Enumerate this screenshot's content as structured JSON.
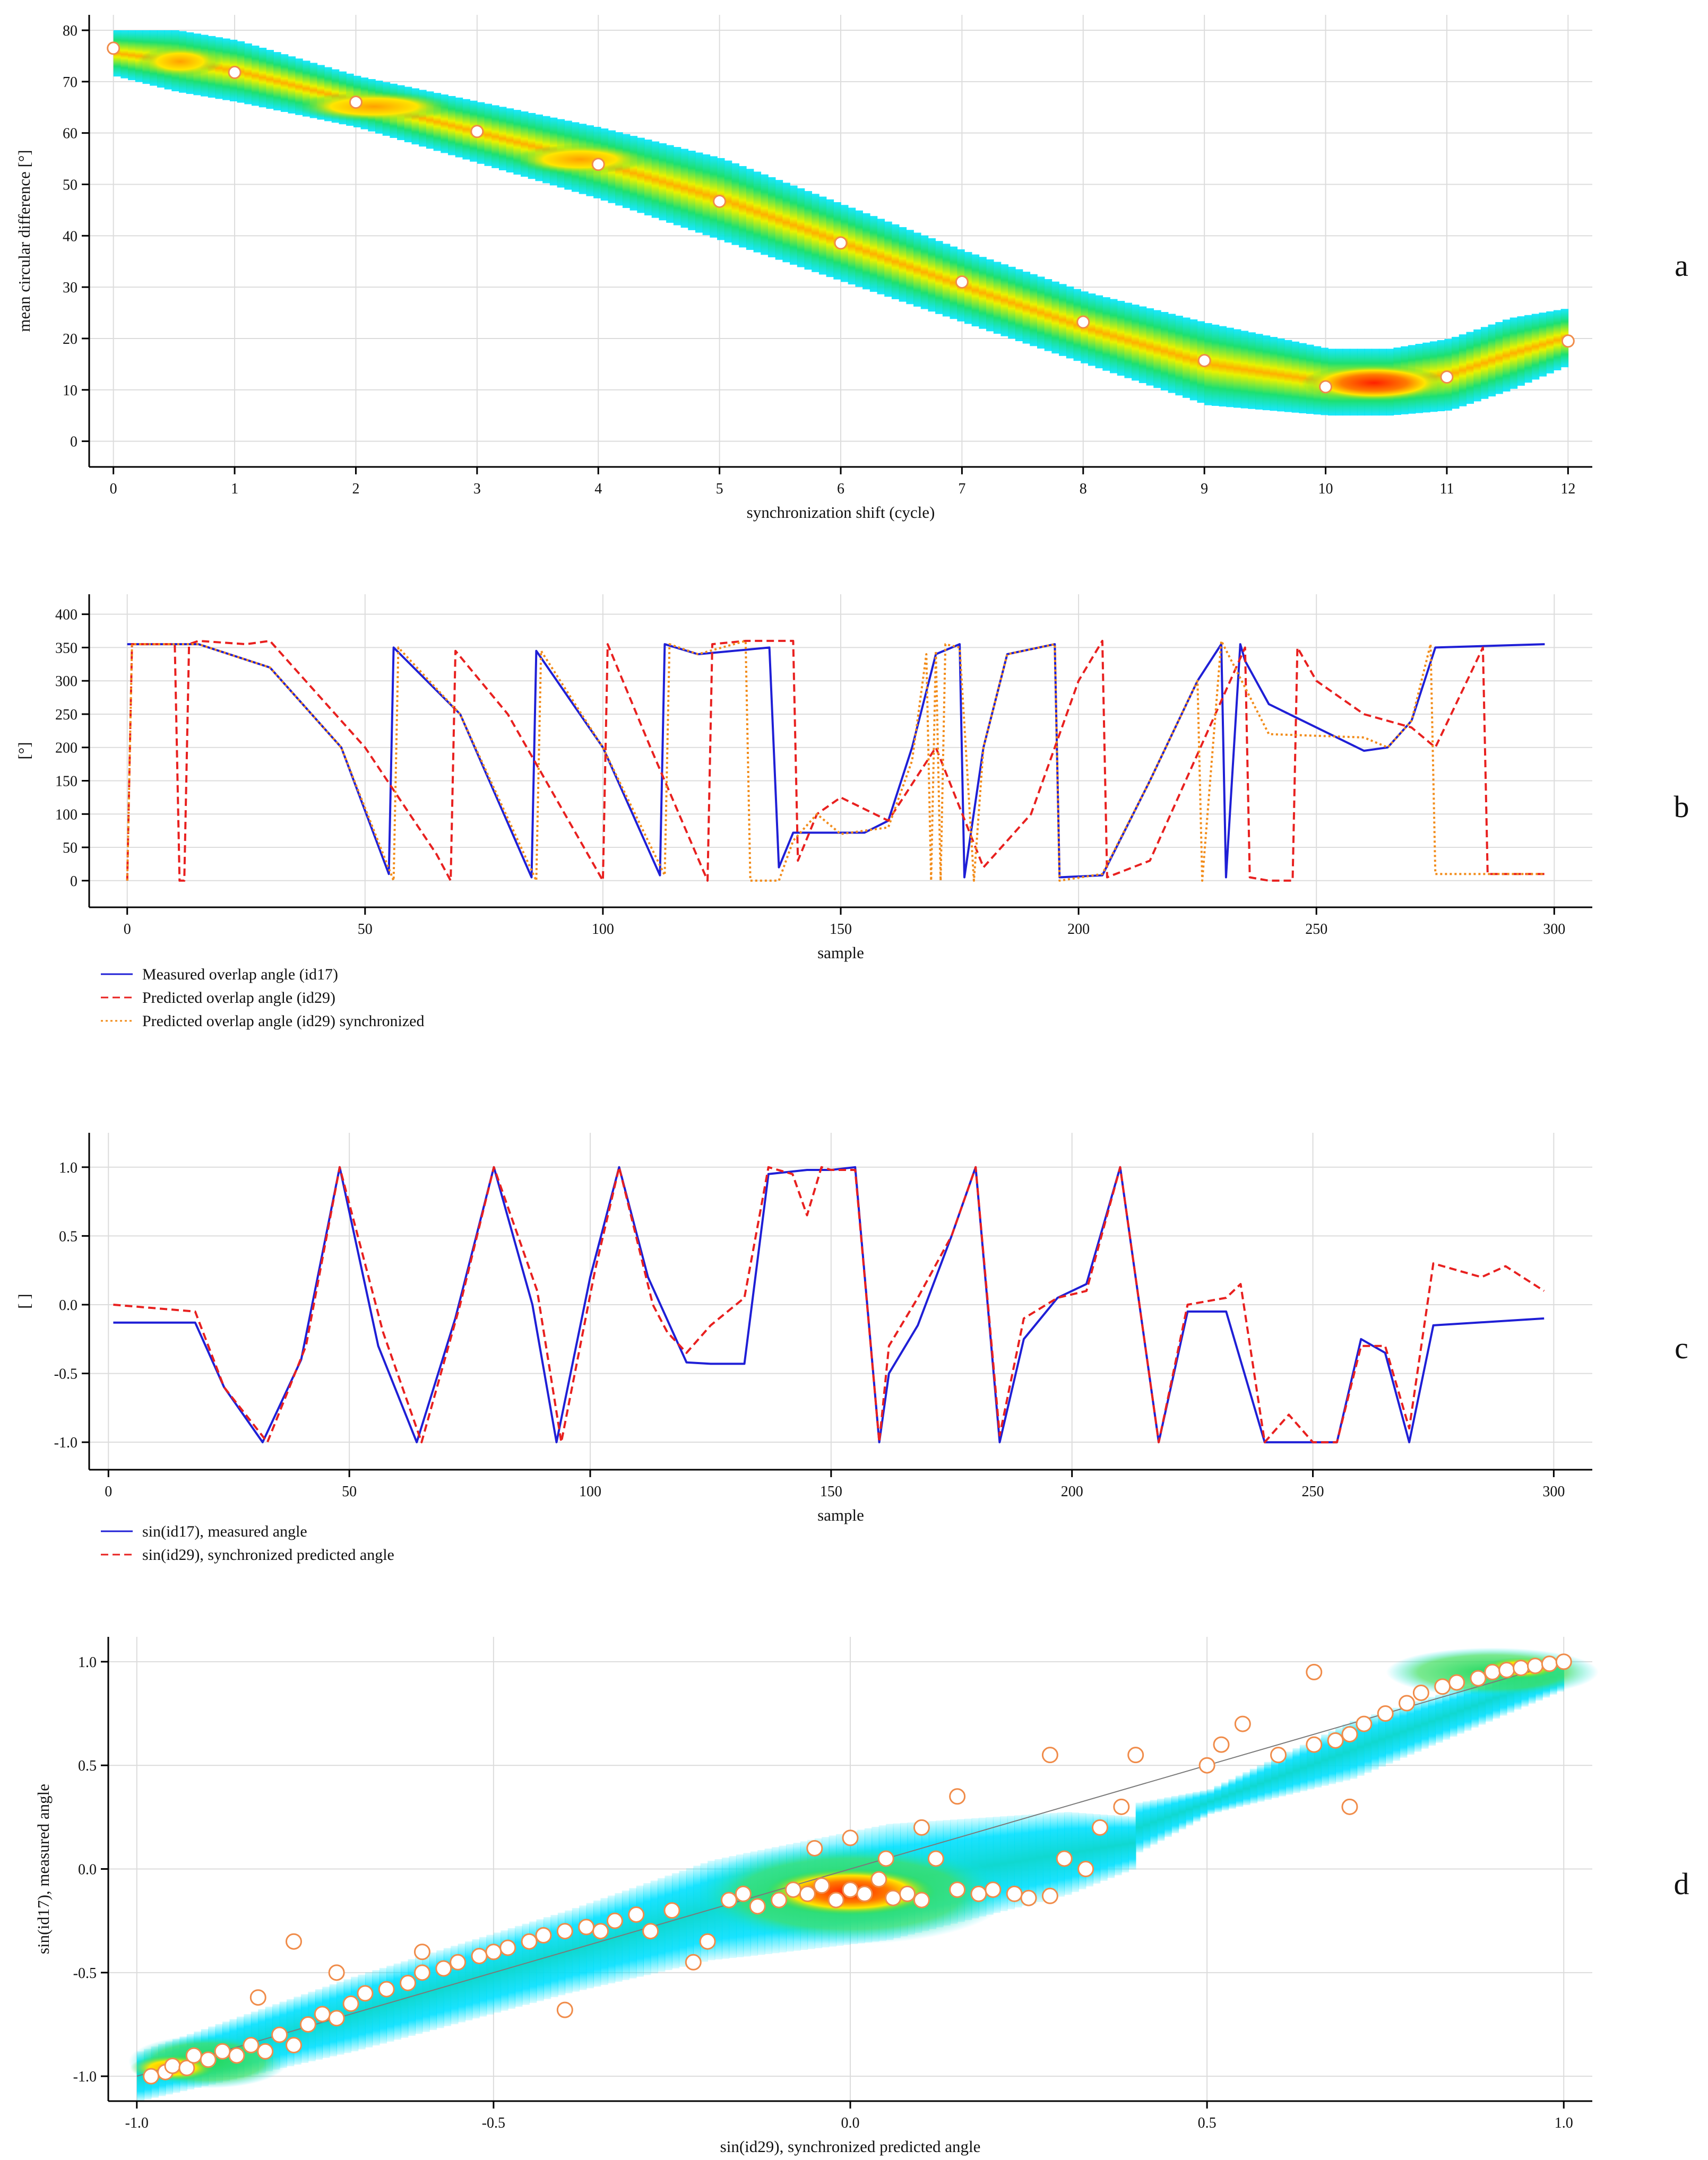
{
  "chart_data": [
    {
      "id": "a",
      "type": "heatmap",
      "panel_letter": "a",
      "xlabel": "synchronization shift (cycle)",
      "ylabel": "mean circular difference [°]",
      "xlim": [
        -0.2,
        12.2
      ],
      "ylim": [
        -5,
        83
      ],
      "xticks": [
        "0",
        "1",
        "2",
        "3",
        "4",
        "5",
        "6",
        "7",
        "8",
        "9",
        "10",
        "11",
        "12"
      ],
      "yticks": [
        "0",
        "10",
        "20",
        "30",
        "40",
        "50",
        "60",
        "70",
        "80"
      ],
      "points": {
        "x": [
          0,
          1,
          2,
          3,
          4,
          5,
          6,
          7,
          8,
          9,
          10,
          11,
          12
        ],
        "y": [
          76.5,
          71.8,
          66.0,
          60.3,
          53.9,
          46.7,
          38.6,
          31.0,
          23.2,
          15.7,
          10.6,
          12.5,
          19.5
        ]
      },
      "density_band": {
        "x": [
          0,
          0.5,
          1,
          2,
          3,
          4,
          5,
          6,
          7,
          8,
          9,
          10,
          10.5,
          11,
          11.5,
          12
        ],
        "lower": [
          71,
          68,
          66,
          61,
          54,
          47,
          39,
          31,
          23,
          15,
          7,
          5,
          5,
          6,
          10,
          15
        ],
        "upper": [
          80,
          80,
          78,
          71,
          66,
          61,
          55,
          46,
          37,
          29,
          23,
          18,
          18,
          20,
          24,
          26
        ],
        "hot_x": [
          [
            0.2,
            0.9
          ],
          [
            1.5,
            2.8
          ],
          [
            3.3,
            4.4
          ],
          [
            9.8,
            11.0
          ]
        ]
      }
    },
    {
      "id": "b",
      "type": "line",
      "panel_letter": "b",
      "xlabel": "sample",
      "ylabel": "[°]",
      "xlim": [
        -8,
        308
      ],
      "ylim": [
        -40,
        430
      ],
      "xticks": [
        "0",
        "50",
        "100",
        "150",
        "200",
        "250",
        "300"
      ],
      "yticks": [
        "0",
        "50",
        "100",
        "150",
        "200",
        "250",
        "300",
        "350",
        "400"
      ],
      "series": [
        {
          "name": "Measured overlap angle (id17)",
          "color": "#1f1fd6",
          "dash": "solid",
          "x": [
            0,
            15,
            30,
            45,
            55,
            56,
            70,
            85,
            86,
            100,
            112,
            113,
            120,
            135,
            137,
            140,
            155,
            160,
            165,
            170,
            175,
            176,
            180,
            185,
            195,
            196,
            205,
            215,
            225,
            230,
            231,
            234,
            235,
            240,
            260,
            265,
            270,
            275,
            298
          ],
          "y": [
            355,
            355,
            320,
            200,
            10,
            350,
            250,
            5,
            345,
            200,
            8,
            355,
            340,
            350,
            20,
            72,
            72,
            90,
            200,
            340,
            355,
            5,
            200,
            340,
            355,
            5,
            8,
            150,
            300,
            355,
            5,
            355,
            330,
            265,
            195,
            200,
            240,
            350,
            355
          ]
        },
        {
          "name": "Predicted overlap angle (id29)",
          "color": "#e8201f",
          "dash": "dashed",
          "x": [
            0,
            1,
            10,
            11,
            12,
            13,
            15,
            25,
            30,
            50,
            65,
            68,
            69,
            80,
            100,
            101,
            110,
            122,
            123,
            130,
            140,
            141,
            145,
            150,
            160,
            170,
            180,
            190,
            200,
            205,
            206,
            215,
            225,
            235,
            236,
            240,
            245,
            246,
            250,
            260,
            270,
            275,
            285,
            286,
            290,
            298
          ],
          "y": [
            0,
            355,
            355,
            0,
            0,
            355,
            360,
            355,
            360,
            200,
            40,
            0,
            345,
            250,
            0,
            355,
            200,
            0,
            355,
            360,
            360,
            30,
            100,
            125,
            90,
            200,
            20,
            100,
            300,
            360,
            5,
            30,
            190,
            350,
            5,
            0,
            0,
            350,
            300,
            250,
            230,
            200,
            350,
            10,
            10,
            10
          ]
        },
        {
          "name": "Predicted overlap angle (id29) synchronized",
          "color": "#f28c1a",
          "dash": "dotted",
          "x": [
            0,
            1,
            15,
            30,
            45,
            56,
            57,
            70,
            86,
            87,
            100,
            113,
            114,
            120,
            130,
            131,
            137,
            140,
            145,
            150,
            160,
            165,
            168,
            169,
            170,
            171,
            172,
            175,
            178,
            180,
            185,
            195,
            196,
            205,
            215,
            225,
            226,
            230,
            240,
            260,
            265,
            270,
            274,
            275,
            280,
            290,
            298
          ],
          "y": [
            0,
            355,
            355,
            320,
            200,
            0,
            350,
            250,
            0,
            345,
            200,
            8,
            355,
            340,
            360,
            0,
            0,
            60,
            100,
            70,
            80,
            180,
            340,
            0,
            345,
            0,
            355,
            350,
            0,
            200,
            340,
            355,
            0,
            10,
            150,
            300,
            0,
            360,
            220,
            215,
            200,
            240,
            355,
            10,
            10,
            10,
            10
          ]
        }
      ]
    },
    {
      "id": "c",
      "type": "line",
      "panel_letter": "c",
      "xlabel": "sample",
      "ylabel": "[ ]",
      "xlim": [
        -4,
        308
      ],
      "ylim": [
        -1.2,
        1.25
      ],
      "xticks": [
        "0",
        "50",
        "100",
        "150",
        "200",
        "250",
        "300"
      ],
      "yticks": [
        "-1.0",
        "-0.5",
        "0.0",
        "0.5",
        "1.0"
      ],
      "series": [
        {
          "name": "sin(id17), measured angle",
          "color": "#1f1fd6",
          "dash": "solid",
          "x": [
            1,
            18,
            24,
            32,
            40,
            48,
            56,
            64,
            72,
            80,
            88,
            93,
            100,
            106,
            112,
            120,
            125,
            132,
            137,
            145,
            150,
            155,
            160,
            162,
            168,
            175,
            180,
            185,
            190,
            197,
            203,
            210,
            218,
            224,
            232,
            240,
            245,
            250,
            255,
            260,
            265,
            270,
            275,
            298
          ],
          "y": [
            -0.13,
            -0.13,
            -0.6,
            -1.0,
            -0.4,
            1.0,
            -0.3,
            -1.0,
            -0.1,
            1.0,
            0.0,
            -1.0,
            0.2,
            1.0,
            0.2,
            -0.42,
            -0.43,
            -0.43,
            0.95,
            0.98,
            0.98,
            1.0,
            -1.0,
            -0.5,
            -0.15,
            0.5,
            1.0,
            -1.0,
            -0.25,
            0.05,
            0.15,
            1.0,
            -1.0,
            -0.05,
            -0.05,
            -1.0,
            -1.0,
            -1.0,
            -1.0,
            -0.25,
            -0.35,
            -1.0,
            -0.15,
            -0.1
          ]
        },
        {
          "name": "sin(id29), synchronized predicted angle",
          "color": "#e8201f",
          "dash": "dashed",
          "x": [
            1,
            18,
            24,
            33,
            41,
            48,
            57,
            65,
            73,
            80,
            89,
            94,
            101,
            106,
            113,
            116,
            120,
            125,
            132,
            137,
            142,
            145,
            148,
            150,
            155,
            160,
            162,
            168,
            175,
            180,
            185,
            190,
            197,
            203,
            210,
            218,
            224,
            232,
            235,
            240,
            245,
            250,
            255,
            260,
            265,
            270,
            275,
            280,
            285,
            290,
            298
          ],
          "y": [
            0.0,
            -0.05,
            -0.6,
            -1.0,
            -0.3,
            1.0,
            -0.2,
            -1.0,
            0.0,
            1.0,
            0.1,
            -1.0,
            0.25,
            1.0,
            0.0,
            -0.2,
            -0.35,
            -0.15,
            0.05,
            1.0,
            0.95,
            0.65,
            1.0,
            0.98,
            0.98,
            -1.0,
            -0.3,
            0.05,
            0.5,
            1.0,
            -0.95,
            -0.1,
            0.05,
            0.1,
            1.0,
            -1.0,
            0.0,
            0.05,
            0.15,
            -1.0,
            -0.8,
            -1.0,
            -1.0,
            -0.3,
            -0.3,
            -0.9,
            0.3,
            0.25,
            0.2,
            0.28,
            0.1
          ]
        }
      ]
    },
    {
      "id": "d",
      "type": "scatter",
      "panel_letter": "d",
      "xlabel": "sin(id29), synchronized predicted angle",
      "ylabel": "sin(id17), measured angle",
      "xlim": [
        -1.04,
        1.04
      ],
      "ylim": [
        -1.12,
        1.12
      ],
      "xticks": [
        "-1.0",
        "-0.5",
        "0.0",
        "0.5",
        "1.0"
      ],
      "yticks": [
        "-1.0",
        "-0.5",
        "0.0",
        "0.5",
        "1.0"
      ],
      "fit_line": {
        "x": [
          -1.0,
          1.0
        ],
        "y": [
          -1.0,
          1.0
        ]
      },
      "points": {
        "x": [
          -0.98,
          -0.96,
          -0.95,
          -0.93,
          -0.92,
          -0.9,
          -0.88,
          -0.86,
          -0.84,
          -0.82,
          -0.8,
          -0.78,
          -0.76,
          -0.74,
          -0.72,
          -0.7,
          -0.68,
          -0.65,
          -0.62,
          -0.6,
          -0.57,
          -0.55,
          -0.52,
          -0.5,
          -0.48,
          -0.45,
          -0.43,
          -0.4,
          -0.37,
          -0.35,
          -0.33,
          -0.3,
          -0.28,
          -0.25,
          -0.22,
          -0.2,
          -0.17,
          -0.15,
          -0.13,
          -0.1,
          -0.08,
          -0.06,
          -0.04,
          -0.02,
          0.0,
          0.02,
          0.04,
          0.06,
          0.08,
          0.1,
          0.12,
          0.15,
          0.18,
          0.2,
          0.23,
          0.25,
          0.28,
          0.3,
          0.33,
          0.35,
          0.38,
          0.4,
          0.5,
          0.52,
          0.55,
          0.6,
          0.65,
          0.68,
          0.7,
          0.72,
          0.75,
          0.78,
          0.8,
          0.83,
          0.85,
          0.88,
          0.9,
          0.92,
          0.94,
          0.96,
          0.98,
          1.0,
          -0.78,
          -0.72,
          -0.6,
          -0.4,
          -0.83,
          -0.05,
          0.0,
          0.05,
          0.1,
          0.15,
          0.28,
          0.65,
          0.7
        ],
        "y": [
          -1.0,
          -0.98,
          -0.95,
          -0.96,
          -0.9,
          -0.92,
          -0.88,
          -0.9,
          -0.85,
          -0.88,
          -0.8,
          -0.85,
          -0.75,
          -0.7,
          -0.72,
          -0.65,
          -0.6,
          -0.58,
          -0.55,
          -0.5,
          -0.48,
          -0.45,
          -0.42,
          -0.4,
          -0.38,
          -0.35,
          -0.32,
          -0.3,
          -0.28,
          -0.3,
          -0.25,
          -0.22,
          -0.3,
          -0.2,
          -0.45,
          -0.35,
          -0.15,
          -0.12,
          -0.18,
          -0.15,
          -0.1,
          -0.12,
          -0.08,
          -0.15,
          -0.1,
          -0.12,
          -0.05,
          -0.14,
          -0.12,
          -0.15,
          0.05,
          -0.1,
          -0.12,
          -0.1,
          -0.12,
          -0.14,
          -0.13,
          0.05,
          0.0,
          0.2,
          0.3,
          0.55,
          0.5,
          0.6,
          0.7,
          0.55,
          0.6,
          0.62,
          0.65,
          0.7,
          0.75,
          0.8,
          0.85,
          0.88,
          0.9,
          0.92,
          0.95,
          0.96,
          0.97,
          0.98,
          0.99,
          1.0,
          -0.35,
          -0.5,
          -0.4,
          -0.68,
          -0.62,
          0.1,
          0.15,
          0.05,
          0.2,
          0.35,
          0.55,
          0.95,
          0.3
        ]
      }
    }
  ]
}
